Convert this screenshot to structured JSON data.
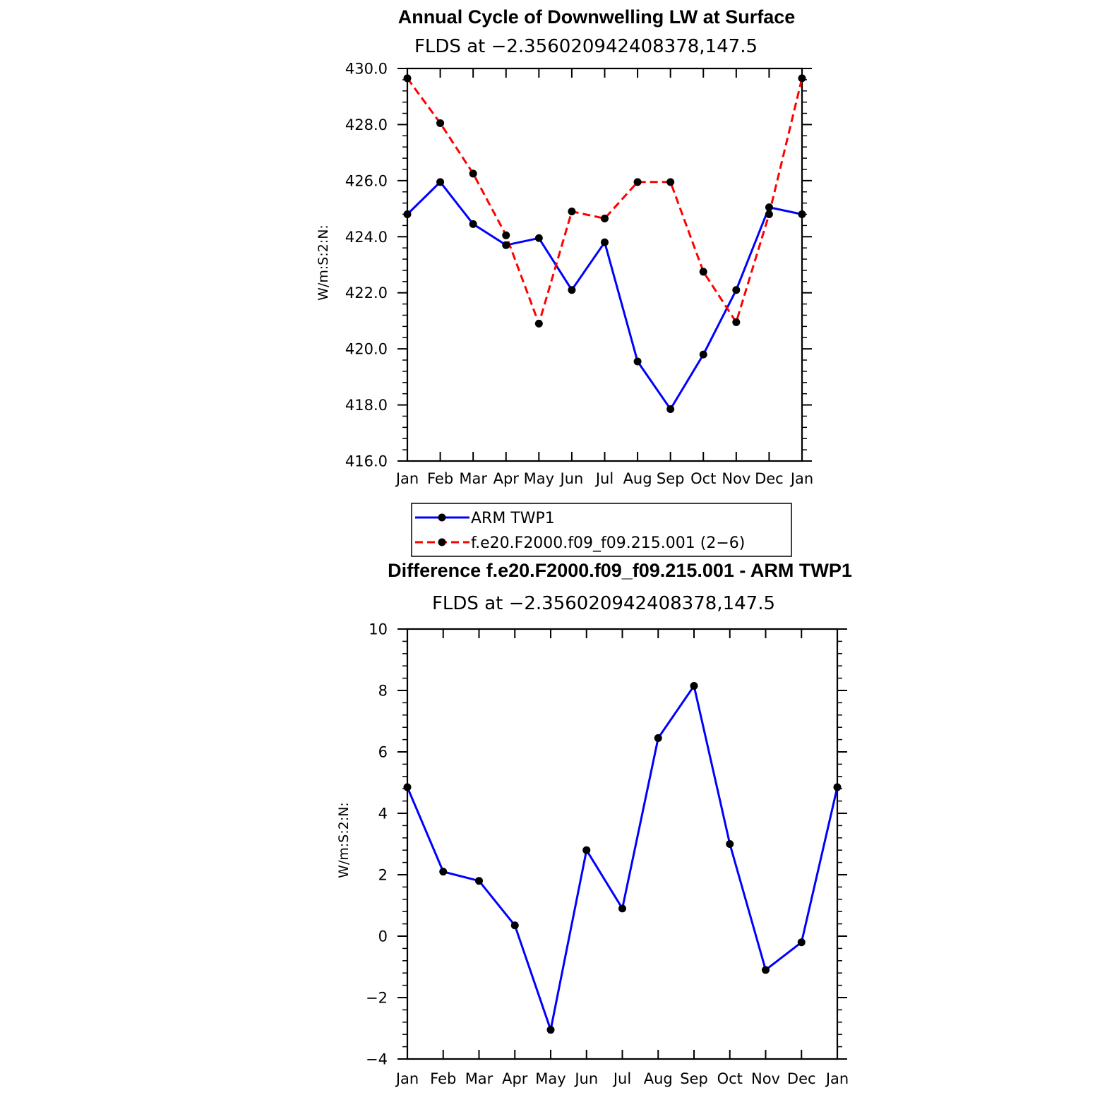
{
  "chart_data": [
    {
      "type": "line",
      "title": "Annual Cycle of Downwelling LW at Surface",
      "subtitle": "FLDS at −2.356020942408378,147.5",
      "ylabel": "W/m:S:2:N:",
      "xlabel": "",
      "categories": [
        "Jan",
        "Feb",
        "Mar",
        "Apr",
        "May",
        "Jun",
        "Jul",
        "Aug",
        "Sep",
        "Oct",
        "Nov",
        "Dec",
        "Jan"
      ],
      "ylim": [
        416,
        430
      ],
      "yticks": [
        "416.0",
        "418.0",
        "420.0",
        "422.0",
        "424.0",
        "426.0",
        "428.0",
        "430.0"
      ],
      "series": [
        {
          "name": "ARM TWP1",
          "color": "#0000ff",
          "dash": "solid",
          "values": [
            424.8,
            425.95,
            424.45,
            423.7,
            423.95,
            422.1,
            423.8,
            419.55,
            417.85,
            419.8,
            422.1,
            425.05,
            424.8
          ]
        },
        {
          "name": "f.e20.F2000.f09_f09.215.001 (2−6)",
          "color": "#ff0000",
          "dash": "dashed",
          "values": [
            429.65,
            428.05,
            426.25,
            424.05,
            420.9,
            424.9,
            424.65,
            425.95,
            425.95,
            422.75,
            420.95,
            424.8,
            429.65
          ]
        }
      ],
      "legend_position": "bottom",
      "grid": false
    },
    {
      "type": "line",
      "title": "Difference f.e20.F2000.f09_f09.215.001 - ARM TWP1",
      "subtitle": "FLDS at −2.356020942408378,147.5",
      "ylabel": "W/m:S:2:N:",
      "xlabel": "",
      "categories": [
        "Jan",
        "Feb",
        "Mar",
        "Apr",
        "May",
        "Jun",
        "Jul",
        "Aug",
        "Sep",
        "Oct",
        "Nov",
        "Dec",
        "Jan"
      ],
      "ylim": [
        -4,
        10
      ],
      "yticks": [
        "−4",
        "−2",
        "0",
        "2",
        "4",
        "6",
        "8",
        "10"
      ],
      "series": [
        {
          "color": "#0000ff",
          "dash": "solid",
          "values": [
            4.85,
            2.1,
            1.8,
            0.35,
            -3.05,
            2.8,
            0.9,
            6.45,
            8.15,
            3.0,
            -1.1,
            -0.2,
            4.85
          ]
        }
      ],
      "grid": false
    }
  ]
}
